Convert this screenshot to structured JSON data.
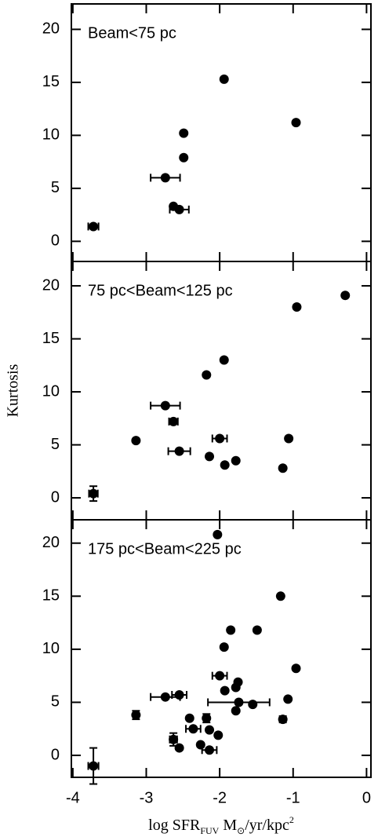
{
  "chart_data": [
    {
      "type": "scatter",
      "annotation": "Beam<75 pc",
      "color": "#000000",
      "x": [
        -3.72,
        -2.74,
        -2.63,
        -2.55,
        -2.49,
        -2.49,
        -1.94,
        -0.96
      ],
      "y": [
        1.4,
        6.0,
        3.3,
        3.0,
        7.9,
        10.2,
        15.3,
        11.2
      ],
      "xerr": [
        0.07,
        0.2,
        null,
        0.13,
        null,
        null,
        null,
        null
      ],
      "yerr": [
        null,
        null,
        null,
        null,
        null,
        null,
        null,
        null
      ],
      "xlim": [
        -4.02,
        0.06
      ],
      "ylim": [
        -1.9,
        22.4
      ],
      "xticks": [
        -4,
        -3,
        -2,
        -1,
        0
      ],
      "yticks": [
        0,
        5,
        10,
        15,
        20
      ],
      "show_xtick_labels": false
    },
    {
      "type": "scatter",
      "annotation": "75 pc<Beam<125 pc",
      "ylabel": "Kurtosis",
      "color": "#000000",
      "x": [
        -3.72,
        -3.14,
        -2.74,
        -2.63,
        -2.55,
        -2.18,
        -2.14,
        -2.0,
        -1.94,
        -1.93,
        -1.78,
        -1.14,
        -1.06,
        -0.95,
        -0.29
      ],
      "y": [
        0.4,
        5.4,
        8.7,
        7.2,
        4.4,
        11.6,
        3.9,
        5.6,
        13.0,
        3.1,
        3.5,
        2.8,
        5.6,
        18.0,
        19.1
      ],
      "xerr": [
        0.06,
        null,
        0.2,
        0.06,
        0.15,
        null,
        null,
        0.1,
        null,
        null,
        null,
        null,
        null,
        null,
        null
      ],
      "yerr": [
        0.7,
        null,
        null,
        null,
        null,
        null,
        null,
        null,
        null,
        null,
        null,
        null,
        null,
        null,
        null
      ],
      "xlim": [
        -4.02,
        0.06
      ],
      "ylim": [
        -2.07,
        22.3
      ],
      "xticks": [
        -4,
        -3,
        -2,
        -1,
        0
      ],
      "yticks": [
        0,
        5,
        10,
        15,
        20
      ],
      "show_xtick_labels": false
    },
    {
      "type": "scatter",
      "annotation": "175 pc<Beam<225 pc",
      "xlabel": [
        "log SFR",
        "FUV",
        " M",
        "⊙",
        "/yr/kpc",
        "2"
      ],
      "color": "#000000",
      "x": [
        -3.72,
        -3.14,
        -2.74,
        -2.55,
        -2.63,
        -2.55,
        -2.41,
        -2.36,
        -2.26,
        -2.18,
        -2.14,
        -2.14,
        -2.02,
        -2.03,
        -2.0,
        -1.93,
        -1.94,
        -1.85,
        -1.78,
        -1.75,
        -1.78,
        -1.74,
        -1.55,
        -1.49,
        -1.17,
        -1.14,
        -1.07,
        -0.96
      ],
      "y": [
        -1.0,
        3.8,
        5.5,
        5.7,
        1.5,
        0.7,
        3.5,
        2.5,
        1.0,
        3.5,
        2.4,
        0.5,
        1.9,
        20.8,
        7.5,
        6.1,
        10.2,
        11.8,
        6.4,
        6.9,
        4.2,
        5.0,
        4.8,
        11.8,
        15.0,
        3.4,
        5.3,
        8.2
      ],
      "xerr": [
        0.07,
        null,
        0.2,
        0.1,
        0.05,
        null,
        null,
        0.1,
        null,
        null,
        null,
        0.1,
        null,
        null,
        0.1,
        null,
        null,
        null,
        null,
        null,
        null,
        0.42,
        null,
        null,
        null,
        null,
        null,
        null
      ],
      "yerr": [
        1.7,
        0.4,
        null,
        null,
        0.6,
        null,
        null,
        null,
        null,
        0.4,
        null,
        null,
        null,
        null,
        null,
        null,
        null,
        null,
        null,
        null,
        null,
        null,
        null,
        null,
        null,
        0.3,
        null,
        null
      ],
      "xlim": [
        -4.02,
        0.06
      ],
      "ylim": [
        -2.07,
        22.2
      ],
      "xticks": [
        -4,
        -3,
        -2,
        -1,
        0
      ],
      "yticks": [
        0,
        5,
        10,
        15,
        20
      ],
      "show_xtick_labels": true
    }
  ]
}
